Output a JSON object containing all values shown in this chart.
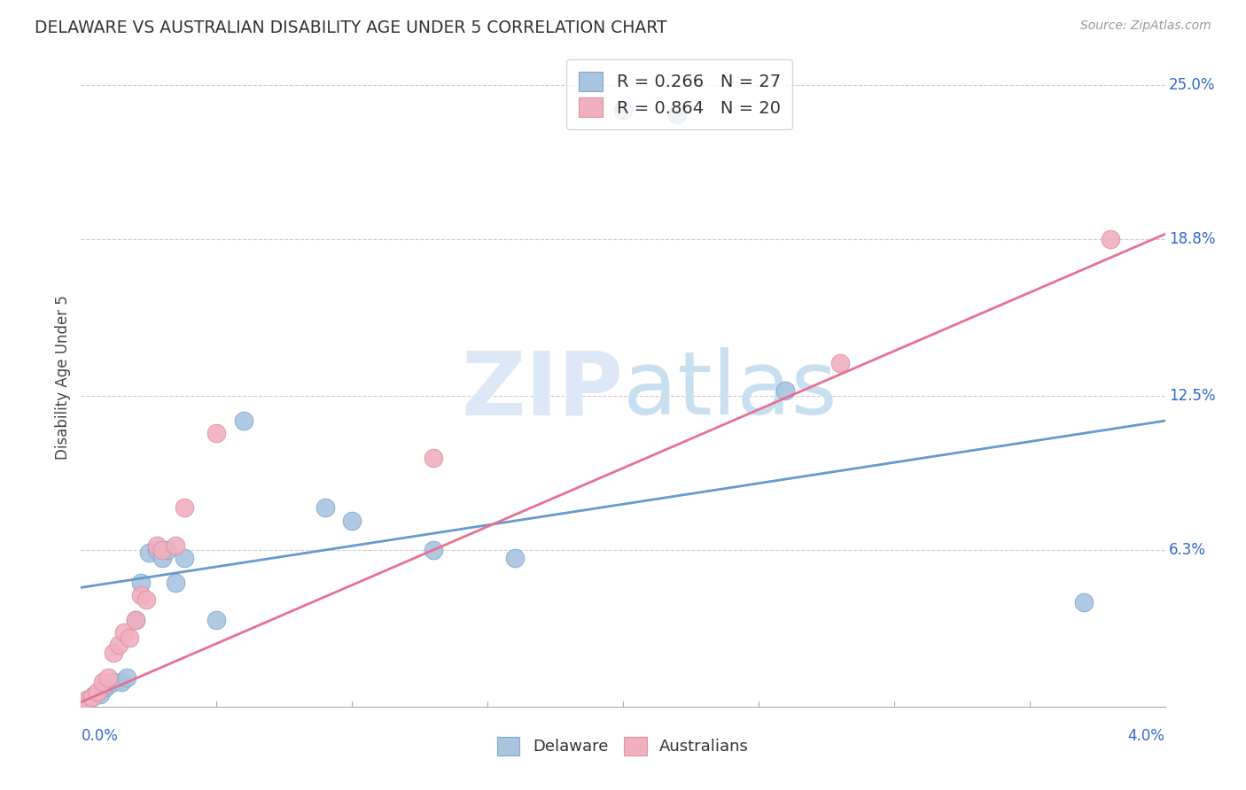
{
  "title": "DELAWARE VS AUSTRALIAN DISABILITY AGE UNDER 5 CORRELATION CHART",
  "source": "Source: ZipAtlas.com",
  "ylabel": "Disability Age Under 5",
  "legend_delaware": "R = 0.266   N = 27",
  "legend_australians": "R = 0.864   N = 20",
  "delaware_color": "#aac4e0",
  "australians_color": "#f0b0c0",
  "delaware_line_color": "#6699cc",
  "australians_line_color": "#e87090",
  "delaware_scatter": [
    [
      0.0002,
      0.003
    ],
    [
      0.0004,
      0.004
    ],
    [
      0.0005,
      0.005
    ],
    [
      0.0007,
      0.005
    ],
    [
      0.0009,
      0.008
    ],
    [
      0.001,
      0.009
    ],
    [
      0.0012,
      0.01
    ],
    [
      0.0015,
      0.01
    ],
    [
      0.0017,
      0.012
    ],
    [
      0.002,
      0.035
    ],
    [
      0.0022,
      0.05
    ],
    [
      0.0025,
      0.062
    ],
    [
      0.0028,
      0.063
    ],
    [
      0.003,
      0.06
    ],
    [
      0.0032,
      0.063
    ],
    [
      0.0035,
      0.05
    ],
    [
      0.0038,
      0.06
    ],
    [
      0.005,
      0.035
    ],
    [
      0.006,
      0.115
    ],
    [
      0.009,
      0.08
    ],
    [
      0.01,
      0.075
    ],
    [
      0.013,
      0.063
    ],
    [
      0.016,
      0.06
    ],
    [
      0.02,
      0.24
    ],
    [
      0.022,
      0.238
    ],
    [
      0.026,
      0.127
    ],
    [
      0.037,
      0.042
    ]
  ],
  "australians_scatter": [
    [
      0.0002,
      0.003
    ],
    [
      0.0004,
      0.004
    ],
    [
      0.0006,
      0.006
    ],
    [
      0.0008,
      0.01
    ],
    [
      0.001,
      0.012
    ],
    [
      0.0012,
      0.022
    ],
    [
      0.0014,
      0.025
    ],
    [
      0.0016,
      0.03
    ],
    [
      0.0018,
      0.028
    ],
    [
      0.002,
      0.035
    ],
    [
      0.0022,
      0.045
    ],
    [
      0.0024,
      0.043
    ],
    [
      0.0028,
      0.065
    ],
    [
      0.003,
      0.063
    ],
    [
      0.0035,
      0.065
    ],
    [
      0.0038,
      0.08
    ],
    [
      0.005,
      0.11
    ],
    [
      0.013,
      0.1
    ],
    [
      0.028,
      0.138
    ],
    [
      0.038,
      0.188
    ]
  ],
  "xlim": [
    0.0,
    0.04
  ],
  "ylim": [
    0.0,
    0.265
  ],
  "ytick_vals": [
    0.063,
    0.125,
    0.188,
    0.25
  ],
  "ytick_labels": [
    "6.3%",
    "12.5%",
    "18.8%",
    "25.0%"
  ],
  "del_trend_x": [
    0.0,
    0.04
  ],
  "del_trend_y": [
    0.048,
    0.115
  ],
  "aus_trend_x": [
    0.0,
    0.04
  ],
  "aus_trend_y": [
    0.002,
    0.19
  ],
  "watermark_text": "ZIPatlas",
  "background_color": "#ffffff"
}
